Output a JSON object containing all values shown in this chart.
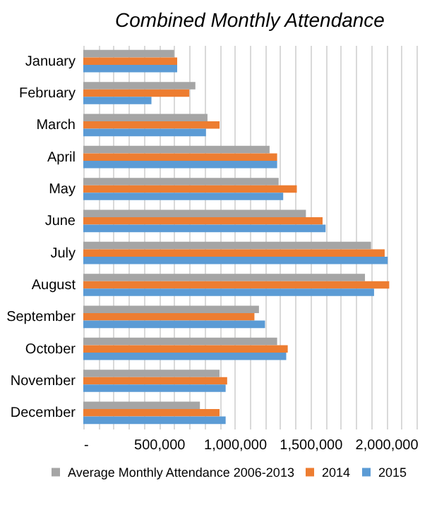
{
  "chart_data": {
    "type": "bar",
    "orientation": "horizontal",
    "title": "Combined Monthly Attendance",
    "categories": [
      "January",
      "February",
      "March",
      "April",
      "May",
      "June",
      "July",
      "August",
      "September",
      "October",
      "November",
      "December"
    ],
    "series": [
      {
        "name": "Average Monthly Attendance 2006-2013",
        "color": "#a5a5a5",
        "values": [
          600000,
          740000,
          820000,
          1230000,
          1290000,
          1470000,
          1900000,
          1860000,
          1160000,
          1280000,
          900000,
          770000
        ]
      },
      {
        "name": "2014",
        "color": "#ed7d31",
        "values": [
          620000,
          700000,
          900000,
          1280000,
          1410000,
          1580000,
          1990000,
          2020000,
          1130000,
          1350000,
          950000,
          900000
        ]
      },
      {
        "name": "2015",
        "color": "#5b9bd5",
        "values": [
          620000,
          450000,
          810000,
          1280000,
          1320000,
          1600000,
          2010000,
          1920000,
          1200000,
          1340000,
          940000,
          940000
        ]
      }
    ],
    "xlim": [
      0,
      2200000
    ],
    "xticks": [
      {
        "value": 0,
        "label": "-"
      },
      {
        "value": 100000,
        "label": null
      },
      {
        "value": 200000,
        "label": null
      },
      {
        "value": 300000,
        "label": null
      },
      {
        "value": 400000,
        "label": null
      },
      {
        "value": 500000,
        "label": "500,000"
      },
      {
        "value": 600000,
        "label": null
      },
      {
        "value": 700000,
        "label": null
      },
      {
        "value": 800000,
        "label": null
      },
      {
        "value": 900000,
        "label": null
      },
      {
        "value": 1000000,
        "label": "1,000,000"
      },
      {
        "value": 1100000,
        "label": null
      },
      {
        "value": 1200000,
        "label": null
      },
      {
        "value": 1300000,
        "label": null
      },
      {
        "value": 1400000,
        "label": null
      },
      {
        "value": 1500000,
        "label": "1,500,000"
      },
      {
        "value": 1600000,
        "label": null
      },
      {
        "value": 1700000,
        "label": null
      },
      {
        "value": 1800000,
        "label": null
      },
      {
        "value": 1900000,
        "label": null
      },
      {
        "value": 2000000,
        "label": "2,000,000"
      },
      {
        "value": 2100000,
        "label": null
      },
      {
        "value": 2200000,
        "label": null
      }
    ],
    "grid": "x",
    "legend": "bottom"
  }
}
